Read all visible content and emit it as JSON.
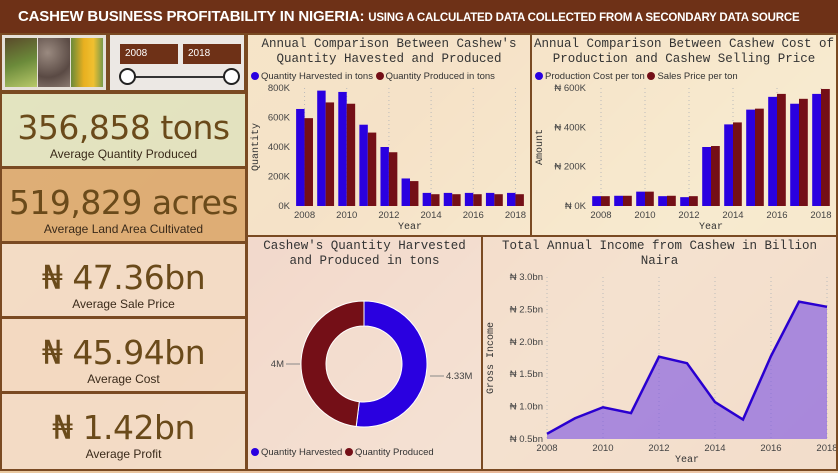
{
  "header": {
    "title": "CASHEW BUSINESS PROFITABILITY IN NIGERIA:",
    "subtitle": "USING A CALCULATED DATA COLLECTED FROM A SECONDARY DATA SOURCE"
  },
  "slicer": {
    "start": "2008",
    "end": "2018"
  },
  "kpis": [
    {
      "value": "356,858 tons",
      "label": "Average Quantity Produced"
    },
    {
      "value": "519,829 acres",
      "label": "Average Land Area Cultivated"
    },
    {
      "value": "₦ 47.36bn",
      "label": "Average Sale Price"
    },
    {
      "value": "₦ 45.94bn",
      "label": "Average Cost"
    },
    {
      "value": "₦ 1.42bn",
      "label": "Average Profit"
    }
  ],
  "colors": {
    "blue": "#2a00e0",
    "maroon": "#740f17",
    "brown": "#6e3117"
  },
  "chart_data": [
    {
      "type": "bar",
      "title": "Annual Comparison Between Cashew's Quantity Havested and Produced",
      "xlabel": "Year",
      "ylabel": "Quantity",
      "categories": [
        "2008",
        "2009",
        "2010",
        "2011",
        "2012",
        "2013",
        "2014",
        "2015",
        "2016",
        "2017",
        "2018"
      ],
      "xticks": [
        "2008",
        "2010",
        "2012",
        "2014",
        "2016",
        "2018"
      ],
      "yticks": [
        "0K",
        "200K",
        "400K",
        "600K",
        "800K"
      ],
      "ylim": [
        0,
        900000
      ],
      "series": [
        {
          "name": "Quantity Harvested in tons",
          "values": [
            740000,
            880000,
            870000,
            620000,
            450000,
            210000,
            100000,
            100000,
            100000,
            100000,
            100000
          ]
        },
        {
          "name": "Quantity Produced in tons",
          "values": [
            670000,
            790000,
            780000,
            560000,
            410000,
            190000,
            90000,
            90000,
            90000,
            90000,
            90000
          ]
        }
      ]
    },
    {
      "type": "bar",
      "title": "Annual Comparison Between Cashew Cost of Production and Cashew Selling Price",
      "xlabel": "Year",
      "ylabel": "Amount",
      "categories": [
        "2008",
        "2009",
        "2010",
        "2011",
        "2012",
        "2013",
        "2014",
        "2015",
        "2016",
        "2017",
        "2018"
      ],
      "xticks": [
        "2008",
        "2010",
        "2012",
        "2014",
        "2016",
        "2018"
      ],
      "yticks": [
        "₦ 0K",
        "₦ 200K",
        "₦ 400K",
        "₦ 600K"
      ],
      "ylim": [
        0,
        600000
      ],
      "series": [
        {
          "name": "Production Cost per ton",
          "values": [
            50000,
            52000,
            73000,
            50000,
            45000,
            300000,
            415000,
            490000,
            555000,
            520000,
            570000
          ]
        },
        {
          "name": "Sales Price per ton",
          "values": [
            50000,
            52000,
            73000,
            52000,
            50000,
            305000,
            425000,
            495000,
            570000,
            545000,
            595000
          ]
        }
      ]
    },
    {
      "type": "pie",
      "title": "Cashew's Quantity Harvested and Produced in tons",
      "labels": [
        "Quantity Harvested",
        "Quantity Produced"
      ],
      "values": [
        4330000,
        4000000
      ],
      "data_labels": [
        "4.33M",
        "4M"
      ]
    },
    {
      "type": "area",
      "title": "Total Annual Income from Cashew in Billion Naira",
      "xlabel": "Year",
      "ylabel": "Gross Income",
      "x": [
        "2008",
        "2009",
        "2010",
        "2011",
        "2012",
        "2013",
        "2014",
        "2015",
        "2016",
        "2017",
        "2018"
      ],
      "xticks": [
        "2008",
        "2010",
        "2012",
        "2014",
        "2016",
        "2018"
      ],
      "yticks": [
        "₦ 0.5bn",
        "₦ 1.0bn",
        "₦ 1.5bn",
        "₦ 2.0bn",
        "₦ 2.5bn",
        "₦ 3.0bn"
      ],
      "ylim": [
        0.5,
        3.0
      ],
      "values": [
        0.58,
        0.82,
        0.99,
        0.9,
        1.77,
        1.67,
        1.07,
        0.8,
        1.78,
        2.62,
        2.54
      ]
    }
  ]
}
